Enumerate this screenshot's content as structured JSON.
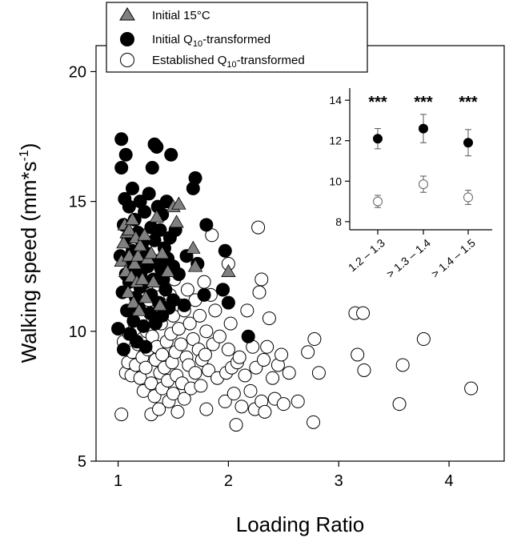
{
  "chart_data": {
    "type": "scatter",
    "xlabel": "Loading Ratio",
    "ylabel": "Walking speed (mm*s",
    "ylabel_sup": "-1",
    "ylabel_close": ")",
    "xlim": [
      0.8,
      4.5
    ],
    "ylim": [
      5,
      21
    ],
    "xticks": [
      "1",
      "2",
      "3",
      "4"
    ],
    "yticks": [
      "5",
      "10",
      "15",
      "20"
    ],
    "legend": {
      "placement": "top-left",
      "entries": [
        {
          "key": "initial15",
          "text": "Initial 15°C",
          "marker": "triangle",
          "fill": "#808080"
        },
        {
          "key": "initialq10",
          "text_pre": "Initial Q",
          "text_sub": "10",
          "text_post": "-transformed",
          "marker": "circle",
          "fill": "#000000"
        },
        {
          "key": "establishedq10",
          "text_pre": "Established Q",
          "text_sub": "10",
          "text_post": "-transformed",
          "marker": "circle",
          "fill": "#ffffff"
        }
      ]
    },
    "series": [
      {
        "key": "establishedq10",
        "marker": "circle",
        "fill": "#ffffff",
        "points": [
          [
            1.03,
            6.8
          ],
          [
            1.05,
            9.6
          ],
          [
            1.07,
            8.4
          ],
          [
            1.09,
            8.8
          ],
          [
            1.1,
            9.9
          ],
          [
            1.12,
            8.3
          ],
          [
            1.13,
            9.2
          ],
          [
            1.15,
            10.1
          ],
          [
            1.16,
            8.7
          ],
          [
            1.18,
            9.5
          ],
          [
            1.2,
            10.5
          ],
          [
            1.2,
            8.2
          ],
          [
            1.22,
            9.0
          ],
          [
            1.23,
            7.7
          ],
          [
            1.25,
            8.6
          ],
          [
            1.26,
            10.0
          ],
          [
            1.27,
            9.3
          ],
          [
            1.28,
            11.2
          ],
          [
            1.3,
            8.0
          ],
          [
            1.3,
            6.8
          ],
          [
            1.31,
            9.8
          ],
          [
            1.32,
            10.6
          ],
          [
            1.33,
            7.5
          ],
          [
            1.34,
            8.9
          ],
          [
            1.35,
            9.4
          ],
          [
            1.36,
            11.8
          ],
          [
            1.37,
            7.0
          ],
          [
            1.38,
            8.4
          ],
          [
            1.39,
            10.3
          ],
          [
            1.4,
            9.1
          ],
          [
            1.4,
            7.8
          ],
          [
            1.41,
            12.5
          ],
          [
            1.42,
            8.6
          ],
          [
            1.43,
            10.9
          ],
          [
            1.44,
            9.6
          ],
          [
            1.45,
            8.1
          ],
          [
            1.46,
            7.3
          ],
          [
            1.47,
            11.4
          ],
          [
            1.48,
            9.9
          ],
          [
            1.49,
            8.8
          ],
          [
            1.5,
            10.6
          ],
          [
            1.5,
            7.6
          ],
          [
            1.51,
            12.0
          ],
          [
            1.52,
            9.2
          ],
          [
            1.53,
            8.3
          ],
          [
            1.54,
            6.9
          ],
          [
            1.55,
            10.1
          ],
          [
            1.56,
            11.0
          ],
          [
            1.57,
            9.5
          ],
          [
            1.58,
            8.0
          ],
          [
            1.6,
            10.8
          ],
          [
            1.6,
            7.4
          ],
          [
            1.62,
            9.0
          ],
          [
            1.63,
            11.6
          ],
          [
            1.64,
            8.7
          ],
          [
            1.65,
            10.3
          ],
          [
            1.66,
            7.8
          ],
          [
            1.68,
            9.7
          ],
          [
            1.7,
            11.2
          ],
          [
            1.7,
            8.4
          ],
          [
            1.72,
            12.6
          ],
          [
            1.73,
            9.3
          ],
          [
            1.74,
            10.6
          ],
          [
            1.75,
            7.9
          ],
          [
            1.76,
            8.9
          ],
          [
            1.78,
            11.9
          ],
          [
            1.79,
            9.1
          ],
          [
            1.8,
            10.0
          ],
          [
            1.8,
            7.0
          ],
          [
            1.82,
            8.5
          ],
          [
            1.84,
            11.4
          ],
          [
            1.85,
            13.7
          ],
          [
            1.86,
            9.5
          ],
          [
            1.88,
            10.8
          ],
          [
            1.9,
            8.2
          ],
          [
            1.92,
            9.8
          ],
          [
            1.95,
            11.6
          ],
          [
            1.97,
            7.3
          ],
          [
            1.98,
            8.4
          ],
          [
            2.0,
            12.6
          ],
          [
            2.0,
            9.3
          ],
          [
            2.02,
            10.3
          ],
          [
            2.03,
            8.6
          ],
          [
            2.05,
            7.6
          ],
          [
            2.07,
            6.4
          ],
          [
            2.08,
            8.8
          ],
          [
            2.1,
            9.0
          ],
          [
            2.12,
            7.1
          ],
          [
            2.15,
            8.3
          ],
          [
            2.17,
            10.8
          ],
          [
            2.2,
            7.7
          ],
          [
            2.22,
            9.4
          ],
          [
            2.24,
            7.0
          ],
          [
            2.25,
            8.6
          ],
          [
            2.27,
            14.0
          ],
          [
            2.28,
            11.5
          ],
          [
            2.3,
            12.0
          ],
          [
            2.3,
            7.3
          ],
          [
            2.32,
            8.9
          ],
          [
            2.33,
            6.9
          ],
          [
            2.35,
            9.4
          ],
          [
            2.37,
            10.5
          ],
          [
            2.4,
            8.2
          ],
          [
            2.42,
            7.4
          ],
          [
            2.45,
            8.7
          ],
          [
            2.48,
            9.1
          ],
          [
            2.5,
            7.2
          ],
          [
            2.55,
            8.4
          ],
          [
            2.63,
            7.3
          ],
          [
            2.72,
            9.2
          ],
          [
            2.77,
            6.5
          ],
          [
            2.78,
            9.7
          ],
          [
            2.82,
            8.4
          ],
          [
            3.15,
            10.7
          ],
          [
            3.17,
            9.1
          ],
          [
            3.22,
            10.7
          ],
          [
            3.23,
            8.5
          ],
          [
            3.55,
            7.2
          ],
          [
            3.58,
            8.7
          ],
          [
            3.77,
            9.7
          ],
          [
            4.2,
            7.8
          ]
        ]
      },
      {
        "key": "initialq10",
        "marker": "circle",
        "fill": "#000000",
        "points": [
          [
            1.0,
            10.1
          ],
          [
            1.02,
            12.9
          ],
          [
            1.03,
            16.3
          ],
          [
            1.03,
            17.4
          ],
          [
            1.04,
            11.5
          ],
          [
            1.05,
            9.3
          ],
          [
            1.05,
            14.1
          ],
          [
            1.06,
            15.1
          ],
          [
            1.07,
            16.8
          ],
          [
            1.07,
            12.2
          ],
          [
            1.08,
            10.8
          ],
          [
            1.09,
            13.6
          ],
          [
            1.1,
            14.8
          ],
          [
            1.1,
            11.9
          ],
          [
            1.11,
            9.9
          ],
          [
            1.12,
            12.5
          ],
          [
            1.13,
            13.1
          ],
          [
            1.13,
            15.5
          ],
          [
            1.14,
            10.4
          ],
          [
            1.15,
            12.0
          ],
          [
            1.15,
            14.3
          ],
          [
            1.16,
            11.3
          ],
          [
            1.17,
            9.6
          ],
          [
            1.18,
            13.8
          ],
          [
            1.18,
            12.8
          ],
          [
            1.19,
            10.9
          ],
          [
            1.2,
            15.0
          ],
          [
            1.2,
            11.7
          ],
          [
            1.21,
            12.3
          ],
          [
            1.22,
            13.4
          ],
          [
            1.23,
            10.2
          ],
          [
            1.24,
            14.6
          ],
          [
            1.25,
            11.9
          ],
          [
            1.25,
            9.4
          ],
          [
            1.26,
            13.0
          ],
          [
            1.27,
            12.5
          ],
          [
            1.28,
            15.3
          ],
          [
            1.29,
            10.7
          ],
          [
            1.3,
            11.4
          ],
          [
            1.3,
            14.0
          ],
          [
            1.31,
            16.3
          ],
          [
            1.32,
            12.0
          ],
          [
            1.33,
            13.5
          ],
          [
            1.33,
            17.2
          ],
          [
            1.34,
            10.3
          ],
          [
            1.35,
            17.1
          ],
          [
            1.35,
            12.7
          ],
          [
            1.36,
            14.8
          ],
          [
            1.37,
            11.1
          ],
          [
            1.38,
            13.9
          ],
          [
            1.39,
            12.4
          ],
          [
            1.4,
            10.6
          ],
          [
            1.4,
            14.5
          ],
          [
            1.41,
            12.0
          ],
          [
            1.42,
            13.2
          ],
          [
            1.43,
            11.6
          ],
          [
            1.44,
            15.0
          ],
          [
            1.45,
            12.8
          ],
          [
            1.46,
            10.9
          ],
          [
            1.47,
            13.6
          ],
          [
            1.48,
            16.8
          ],
          [
            1.5,
            12.5
          ],
          [
            1.5,
            11.2
          ],
          [
            1.52,
            13.9
          ],
          [
            1.55,
            12.2
          ],
          [
            1.6,
            11.0
          ],
          [
            1.62,
            12.9
          ],
          [
            1.68,
            15.5
          ],
          [
            1.7,
            15.9
          ],
          [
            1.72,
            12.6
          ],
          [
            1.78,
            11.4
          ],
          [
            1.8,
            14.1
          ],
          [
            1.95,
            11.6
          ],
          [
            1.97,
            13.1
          ],
          [
            2.0,
            11.1
          ],
          [
            2.18,
            9.8
          ]
        ]
      },
      {
        "key": "initial15",
        "marker": "triangle",
        "fill": "#808080",
        "points": [
          [
            1.03,
            12.7
          ],
          [
            1.05,
            13.4
          ],
          [
            1.06,
            14.1
          ],
          [
            1.07,
            12.3
          ],
          [
            1.08,
            13.8
          ],
          [
            1.09,
            11.5
          ],
          [
            1.1,
            12.9
          ],
          [
            1.1,
            13.9
          ],
          [
            1.12,
            12.1
          ],
          [
            1.13,
            14.3
          ],
          [
            1.14,
            11.1
          ],
          [
            1.15,
            12.6
          ],
          [
            1.16,
            13.6
          ],
          [
            1.17,
            11.9
          ],
          [
            1.18,
            12.9
          ],
          [
            1.19,
            10.8
          ],
          [
            1.2,
            13.3
          ],
          [
            1.22,
            12.0
          ],
          [
            1.24,
            13.7
          ],
          [
            1.25,
            11.3
          ],
          [
            1.27,
            12.8
          ],
          [
            1.3,
            13.0
          ],
          [
            1.32,
            11.9
          ],
          [
            1.35,
            14.4
          ],
          [
            1.38,
            11.0
          ],
          [
            1.4,
            13.0
          ],
          [
            1.45,
            12.3
          ],
          [
            1.5,
            14.8
          ],
          [
            1.53,
            14.2
          ],
          [
            1.55,
            14.9
          ],
          [
            1.68,
            13.2
          ],
          [
            1.7,
            12.5
          ],
          [
            2.0,
            12.3
          ]
        ]
      }
    ],
    "inset": {
      "type": "scatter-errorbar",
      "categories": [
        "1.2 – 1.3",
        "> 1.3 – 1.4",
        "> 1.4 – 1.5"
      ],
      "yticks": [
        "8",
        "10",
        "12",
        "14"
      ],
      "ylim": [
        7.6,
        14.6
      ],
      "significance": [
        "***",
        "***",
        "***"
      ],
      "series": [
        {
          "key": "initialq10",
          "fill": "#000000",
          "values": [
            12.1,
            12.6,
            11.9
          ],
          "errors": [
            0.5,
            0.7,
            0.65
          ]
        },
        {
          "key": "establishedq10",
          "fill": "#ffffff",
          "values": [
            9.0,
            9.85,
            9.2
          ],
          "errors": [
            0.3,
            0.4,
            0.35
          ]
        }
      ]
    }
  }
}
